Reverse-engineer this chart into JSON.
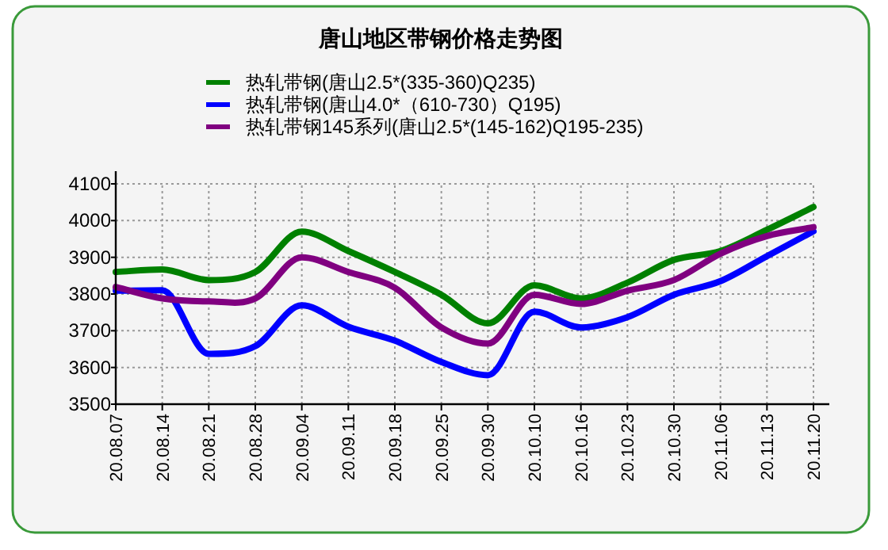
{
  "chart_data": {
    "type": "line",
    "title": "唐山地区带钢价格走势图",
    "categories": [
      "20.08.07",
      "20.08.14",
      "20.08.21",
      "20.08.28",
      "20.09.04",
      "20.09.11",
      "20.09.18",
      "20.09.25",
      "20.09.30",
      "20.10.10",
      "20.10.16",
      "20.10.23",
      "20.10.30",
      "20.11.06",
      "20.11.13",
      "20.11.20"
    ],
    "series": [
      {
        "name": "热轧带钢(唐山2.5*(335-360)Q235)",
        "color": "#008000",
        "values": [
          3860,
          3867,
          3838,
          3860,
          3970,
          3917,
          3860,
          3798,
          3720,
          3824,
          3788,
          3831,
          3893,
          3917,
          3975,
          4037
        ]
      },
      {
        "name": "热轧带钢(唐山4.0*（610-730）Q195)",
        "color": "#0000ff",
        "values": [
          3809,
          3810,
          3637,
          3658,
          3769,
          3711,
          3673,
          3615,
          3579,
          3752,
          3709,
          3737,
          3798,
          3835,
          3903,
          3971
        ]
      },
      {
        "name": "热轧带钢145系列(唐山2.5*(145-162)Q195-235)",
        "color": "#800080",
        "values": [
          3819,
          3788,
          3780,
          3788,
          3900,
          3860,
          3817,
          3709,
          3665,
          3798,
          3773,
          3809,
          3838,
          3910,
          3958,
          3982
        ]
      }
    ],
    "ylim": [
      3500,
      4100
    ],
    "yticks": [
      3500,
      3600,
      3700,
      3800,
      3900,
      4000,
      4100
    ],
    "grid": true,
    "legend": "top"
  }
}
